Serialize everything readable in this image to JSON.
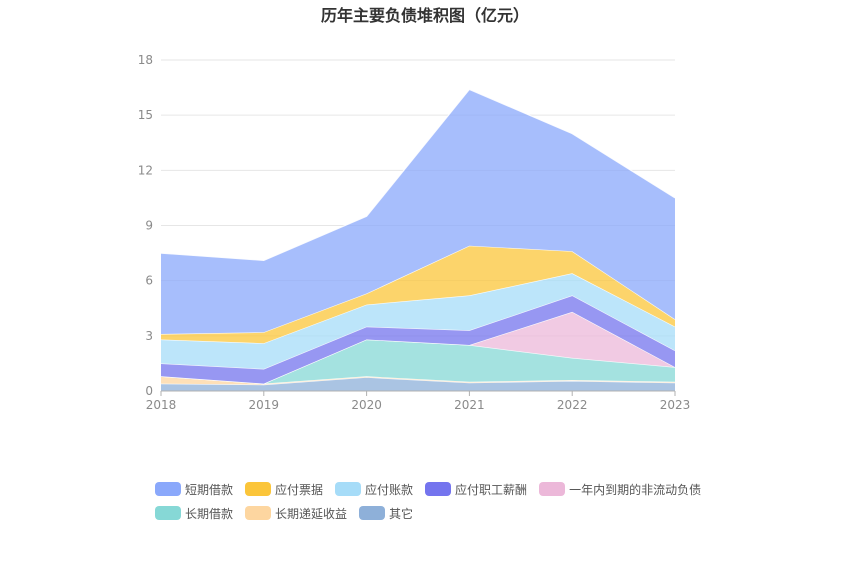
{
  "chart_data": {
    "type": "area",
    "stacked": true,
    "title": "历年主要负债堆积图（亿元）",
    "x": [
      "2018",
      "2019",
      "2020",
      "2021",
      "2022",
      "2023"
    ],
    "ylim": [
      0,
      18
    ],
    "yticks": [
      0,
      3,
      6,
      9,
      12,
      15,
      18
    ],
    "grid": true,
    "legend_position": "bottom",
    "series": [
      {
        "name": "短期借款",
        "color": "#8aa8fb",
        "values": [
          4.4,
          3.9,
          4.2,
          8.5,
          6.4,
          6.6
        ]
      },
      {
        "name": "应付票据",
        "color": "#fbc53a",
        "values": [
          0.3,
          0.6,
          0.6,
          2.7,
          1.2,
          0.4
        ]
      },
      {
        "name": "应付账款",
        "color": "#a6dcf8",
        "values": [
          1.3,
          1.4,
          1.2,
          1.9,
          1.2,
          1.3
        ]
      },
      {
        "name": "应付职工薪酬",
        "color": "#7474ee",
        "values": [
          0.7,
          0.8,
          0.7,
          0.8,
          0.9,
          0.9
        ]
      },
      {
        "name": "一年内到期的非流动负债",
        "color": "#ecb8d9",
        "values": [
          0,
          0,
          0,
          0,
          2.5,
          0
        ]
      },
      {
        "name": "长期借款",
        "color": "#86d8d6",
        "values": [
          0,
          0,
          2.0,
          2.0,
          1.2,
          0.8
        ]
      },
      {
        "name": "长期递延收益",
        "color": "#fdd6a0",
        "values": [
          0.4,
          0.05,
          0.05,
          0.05,
          0.05,
          0.05
        ]
      },
      {
        "name": "其它",
        "color": "#8eb0d9",
        "values": [
          0.4,
          0.35,
          0.75,
          0.45,
          0.55,
          0.45
        ]
      }
    ]
  }
}
